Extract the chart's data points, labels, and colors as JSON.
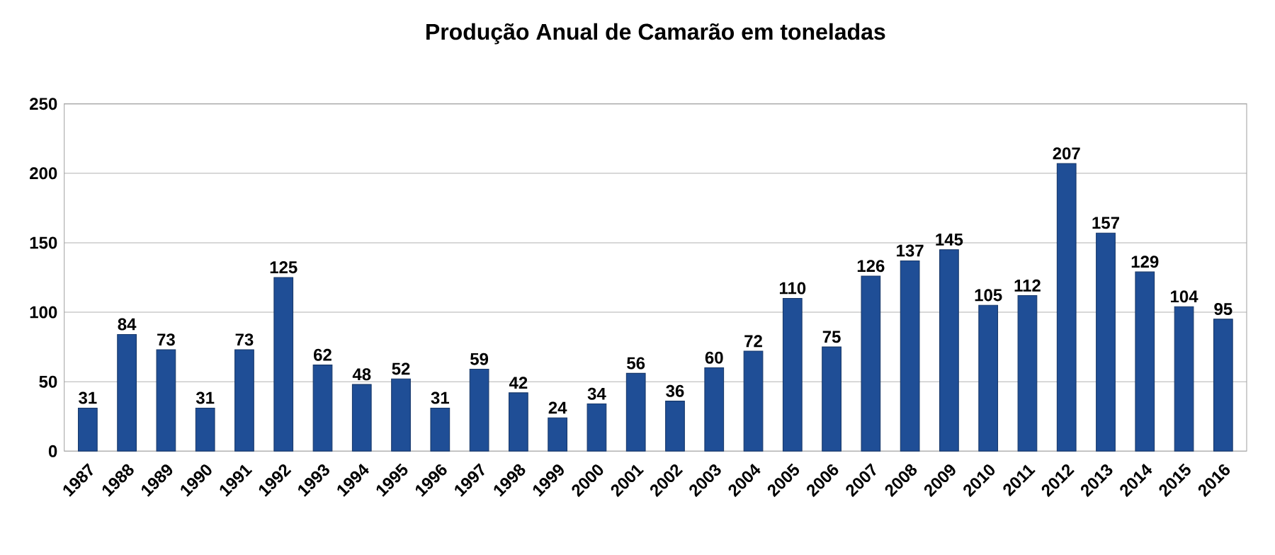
{
  "chart_data": {
    "type": "bar",
    "title": "Produção Anual de Camarão em toneladas",
    "categories": [
      "1987",
      "1988",
      "1989",
      "1990",
      "1991",
      "1992",
      "1993",
      "1994",
      "1995",
      "1996",
      "1997",
      "1998",
      "1999",
      "2000",
      "2001",
      "2002",
      "2003",
      "2004",
      "2005",
      "2006",
      "2007",
      "2008",
      "2009",
      "2010",
      "2011",
      "2012",
      "2013",
      "2014",
      "2015",
      "2016"
    ],
    "values": [
      31,
      84,
      73,
      31,
      73,
      125,
      62,
      48,
      52,
      31,
      59,
      42,
      24,
      34,
      56,
      36,
      60,
      72,
      110,
      75,
      126,
      137,
      145,
      105,
      112,
      207,
      157,
      129,
      104,
      95
    ],
    "color": "#1f4e96",
    "ylim": [
      0,
      250
    ],
    "yticks": [
      0,
      50,
      100,
      150,
      200,
      250
    ],
    "grid": "y",
    "data_labels": true
  }
}
